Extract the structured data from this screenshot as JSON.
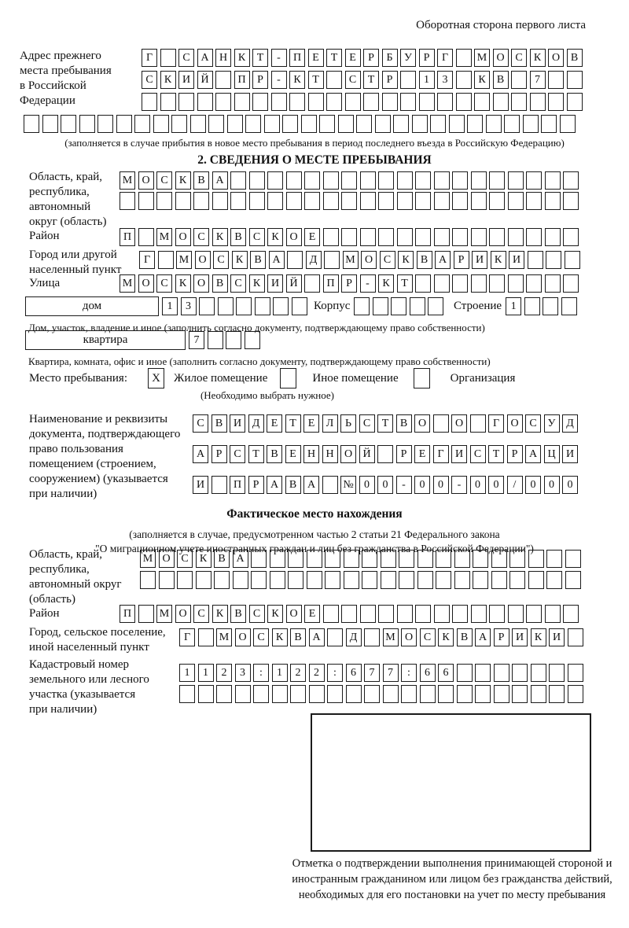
{
  "page_title": "Оборотная сторона первого листа",
  "colors": {
    "ink": "#1b1b1b",
    "paper": "#ffffff"
  },
  "prev_address": {
    "label": "Адрес прежнего\nместа пребывания\nв Российской\nФедерации",
    "rows": [
      {
        "text": "Г САНКТ-ПЕТЕРБУРГ МОСКОВ",
        "len": 24
      },
      {
        "text": "СКИЙ ПР-КТ СТР 13 КВ 7",
        "len": 24
      },
      {
        "text": "",
        "len": 24
      }
    ],
    "overflow_row": {
      "text": "",
      "len": 30
    },
    "note": "(заполняется в случае прибытия в новое место пребывания в период последнего въезда в Российскую Федерацию)"
  },
  "section2": {
    "header": "2. СВЕДЕНИЯ О МЕСТЕ ПРЕБЫВАНИЯ",
    "region": {
      "label": "Область, край,\nреспублика,\nавтономный\nокруг (область)",
      "rows": [
        {
          "text": "МОСКВА",
          "len": 25
        },
        {
          "text": "",
          "len": 25
        }
      ]
    },
    "district": {
      "label": "Район",
      "row": {
        "text": "П МОСКВСКОЕ",
        "len": 25
      }
    },
    "city": {
      "label": "Город или другой\nнаселенный пункт",
      "row": {
        "text": "Г МОСКВА Д МОСКВАРИКИ",
        "len": 24
      }
    },
    "street": {
      "label": "Улица",
      "row": {
        "text": "МОСКОВСКИЙ ПР-КТ",
        "len": 25
      }
    },
    "house": {
      "box_label": "дом",
      "number": {
        "text": "13",
        "len": 8
      },
      "korpus_label": "Корпус",
      "korpus": {
        "text": "",
        "len": 5
      },
      "stroenie_label": "Строение",
      "stroenie": {
        "text": "1",
        "len": 4
      },
      "note": "Дом, участок, владение и иное (заполнить согласно документу, подтверждающему право собственности)"
    },
    "apartment": {
      "box_label": "квартира",
      "number": {
        "text": "7",
        "len": 4
      },
      "note": "Квартира, комната, офис и иное (заполнить согласно документу, подтверждающему право собственности)"
    },
    "stay_type": {
      "label": "Место пребывания:",
      "options": [
        {
          "label": "Жилое помещение",
          "mark": "X"
        },
        {
          "label": "Иное помещение",
          "mark": ""
        },
        {
          "label": "Организация",
          "mark": ""
        }
      ],
      "note": "(Необходимо выбрать нужное)"
    },
    "document": {
      "label": "Наименование и реквизиты\nдокумента, подтверждающего\nправо пользования\nпомещением (строением,\nсооружением) (указывается\nпри наличии)",
      "rows": [
        {
          "text": "СВИДЕТЕЛЬСТВО О ГОСУД",
          "len": 21
        },
        {
          "text": "АРСТВЕННОЙ РЕГИСТРАЦИ",
          "len": 21
        },
        {
          "text": "И ПРАВА №00-00-00/000",
          "len": 21
        }
      ]
    }
  },
  "actual_location": {
    "header": "Фактическое место нахождения",
    "note_line1": "(заполняется в случае, предусмотренном частью 2 статьи 21 Федерального закона",
    "note_line2": "\"О миграционном учете иностранных граждан и лиц без гражданства в Российской Федерации\")",
    "region": {
      "label": "Область, край,\nреспублика,\nавтономный округ\n(область)",
      "rows": [
        {
          "text": "МОСКВА",
          "len": 24
        },
        {
          "text": "",
          "len": 24
        }
      ]
    },
    "district": {
      "label": "Район",
      "row": {
        "text": "П МОСКВСКОЕ",
        "len": 25
      }
    },
    "city": {
      "label": "Город, сельское поселение,\nиной населенный пункт",
      "row": {
        "text": "Г МОСКВА Д МОСКВАРИКИ",
        "len": 22
      }
    },
    "cadastre": {
      "label": "Кадастровый номер\nземельного или лесного\nучастка (указывается\nпри наличии)",
      "rows": [
        {
          "text": "1123:122:677:66",
          "len": 22
        },
        {
          "text": "",
          "len": 22
        }
      ]
    }
  },
  "confirmation": {
    "caption": "Отметка о подтверждении выполнения принимающей стороной и иностранным гражданином или лицом без гражданства действий, необходимых для его постановки на учет по месту пребывания"
  }
}
